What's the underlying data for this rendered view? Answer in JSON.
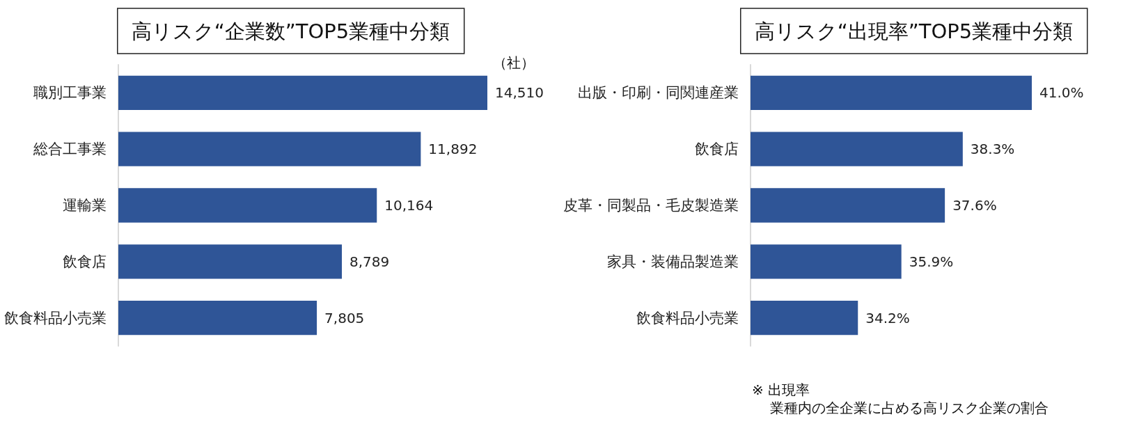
{
  "chart_data": [
    {
      "type": "bar",
      "orientation": "horizontal",
      "title": "高リスク“企業数”TOP5業種中分類",
      "categories": [
        "職別工事業",
        "総合工事業",
        "運輸業",
        "飲食店",
        "飲食料品小売業"
      ],
      "values": [
        14510,
        11892,
        10164,
        8789,
        7805
      ],
      "value_labels": [
        "14,510",
        "11,892",
        "10,164",
        "8,789",
        "7,805"
      ],
      "color": "#2f5597",
      "xlim": [
        0,
        14510
      ],
      "tick_labels": "y",
      "annotations": [
        "（社）"
      ]
    },
    {
      "type": "bar",
      "orientation": "horizontal",
      "title": "高リスク“出現率”TOP5業種中分類",
      "categories": [
        "出版・印刷・同関連産業",
        "飲食店",
        "皮革・同製品・毛皮製造業",
        "家具・装備品製造業",
        "飲食料品小売業"
      ],
      "values": [
        41.0,
        38.3,
        37.6,
        35.9,
        34.2
      ],
      "value_labels": [
        "41.0%",
        "38.3%",
        "37.6%",
        "35.9%",
        "34.2%"
      ],
      "color": "#2f5597",
      "xlim": [
        30,
        41.0
      ],
      "tick_labels": "y",
      "annotations": [
        "※ 出現率",
        "業種内の全企業に占める高リスク企業の割合"
      ]
    }
  ]
}
